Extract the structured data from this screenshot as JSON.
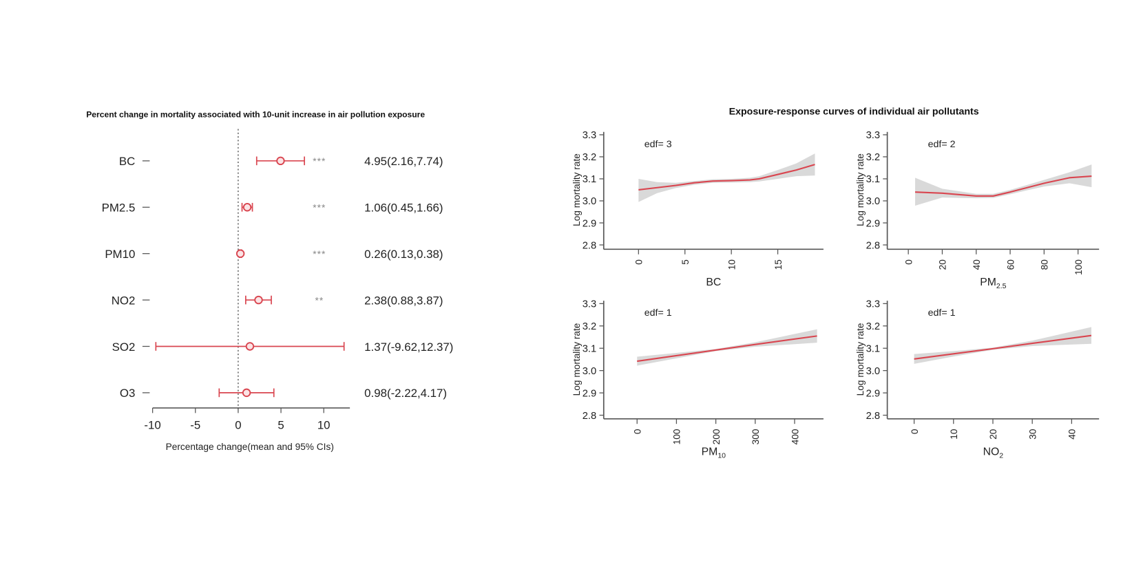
{
  "colors": {
    "accent": "#d9454f",
    "band": "#d9d9d9",
    "axis": "#555555",
    "stars": "#888888"
  },
  "chart_data": [
    {
      "type": "forest",
      "title": "Percent change in mortality associated with 10-unit increase in air pollution exposure",
      "xlabel": "Percentage change(mean and 95% CIs)",
      "xlim": [
        -10,
        13
      ],
      "xticks": [
        "-10",
        "-5",
        "0",
        "5",
        "10"
      ],
      "reference_line": 0,
      "rows": [
        {
          "label": "BC",
          "mean": 4.95,
          "lower": 2.16,
          "upper": 7.74,
          "stars": "***",
          "text": "4.95(2.16,7.74)"
        },
        {
          "label": "PM2.5",
          "mean": 1.06,
          "lower": 0.45,
          "upper": 1.66,
          "stars": "***",
          "text": "1.06(0.45,1.66)"
        },
        {
          "label": "PM10",
          "mean": 0.26,
          "lower": 0.13,
          "upper": 0.38,
          "stars": "***",
          "text": "0.26(0.13,0.38)"
        },
        {
          "label": "NO2",
          "mean": 2.38,
          "lower": 0.88,
          "upper": 3.87,
          "stars": "**",
          "text": "2.38(0.88,3.87)"
        },
        {
          "label": "SO2",
          "mean": 1.37,
          "lower": -9.62,
          "upper": 12.37,
          "stars": "",
          "text": "1.37(-9.62,12.37)"
        },
        {
          "label": "O3",
          "mean": 0.98,
          "lower": -2.22,
          "upper": 4.17,
          "stars": "",
          "text": "0.98(-2.22,4.17)"
        }
      ]
    },
    {
      "type": "line",
      "title": "Exposure-response curves of individual air pollutants",
      "panels": [
        {
          "xlabel": "BC",
          "xlabel_sub": "",
          "ylabel": "Log mortality rate",
          "annotation": "edf= 3",
          "ylim": [
            2.8,
            3.3
          ],
          "yticks": [
            "2.8",
            "2.9",
            "3.0",
            "3.1",
            "3.2",
            "3.3"
          ],
          "xlim": [
            -0.5,
            19.5
          ],
          "xticks": [
            "0",
            "5",
            "10",
            "15"
          ],
          "x": [
            0,
            2,
            4,
            6,
            8,
            10,
            12,
            13,
            15,
            17,
            19
          ],
          "y": [
            3.05,
            3.06,
            3.07,
            3.082,
            3.09,
            3.092,
            3.095,
            3.1,
            3.12,
            3.14,
            3.165
          ],
          "lower": [
            2.995,
            3.035,
            3.058,
            3.073,
            3.082,
            3.083,
            3.085,
            3.088,
            3.1,
            3.112,
            3.115
          ],
          "upper": [
            3.1,
            3.085,
            3.082,
            3.09,
            3.098,
            3.1,
            3.105,
            3.112,
            3.14,
            3.17,
            3.215
          ]
        },
        {
          "xlabel": "PM",
          "xlabel_sub": "2.5",
          "ylabel": "Log mortality rate",
          "annotation": "edf= 2",
          "ylim": [
            2.8,
            3.3
          ],
          "yticks": [
            "2.8",
            "2.9",
            "3.0",
            "3.1",
            "3.2",
            "3.3"
          ],
          "xlim": [
            -4,
            112
          ],
          "xticks": [
            "0",
            "20",
            "40",
            "60",
            "80",
            "100"
          ],
          "x": [
            4,
            20,
            40,
            50,
            60,
            70,
            80,
            95,
            108
          ],
          "y": [
            3.04,
            3.035,
            3.022,
            3.022,
            3.04,
            3.06,
            3.08,
            3.105,
            3.112
          ],
          "lower": [
            2.978,
            3.015,
            3.012,
            3.013,
            3.03,
            3.048,
            3.065,
            3.08,
            3.062
          ],
          "upper": [
            3.105,
            3.055,
            3.032,
            3.032,
            3.05,
            3.072,
            3.095,
            3.13,
            3.165
          ]
        },
        {
          "xlabel": "PM",
          "xlabel_sub": "10",
          "ylabel": "Log mortality rate",
          "annotation": "edf= 1",
          "ylim": [
            2.8,
            3.3
          ],
          "yticks": [
            "2.8",
            "2.9",
            "3.0",
            "3.1",
            "3.2",
            "3.3"
          ],
          "xlim": [
            -10,
            470
          ],
          "xticks": [
            "0",
            "100",
            "200",
            "300",
            "400"
          ],
          "x": [
            0,
            100,
            200,
            300,
            457
          ],
          "y": [
            3.042,
            3.067,
            3.092,
            3.117,
            3.155
          ],
          "lower": [
            3.022,
            3.055,
            3.087,
            3.107,
            3.125
          ],
          "upper": [
            3.062,
            3.079,
            3.097,
            3.127,
            3.185
          ]
        },
        {
          "xlabel": "NO",
          "xlabel_sub": "2",
          "ylabel": "Log mortality rate",
          "annotation": "edf= 1",
          "ylim": [
            2.8,
            3.3
          ],
          "yticks": [
            "2.8",
            "2.9",
            "3.0",
            "3.1",
            "3.2",
            "3.3"
          ],
          "xlim": [
            -1,
            46
          ],
          "xticks": [
            "0",
            "10",
            "20",
            "30",
            "40"
          ],
          "x": [
            0,
            10,
            20,
            30,
            45
          ],
          "y": [
            3.052,
            3.075,
            3.098,
            3.122,
            3.157
          ],
          "lower": [
            3.03,
            3.063,
            3.093,
            3.11,
            3.12
          ],
          "upper": [
            3.074,
            3.087,
            3.103,
            3.134,
            3.195
          ]
        }
      ]
    }
  ]
}
